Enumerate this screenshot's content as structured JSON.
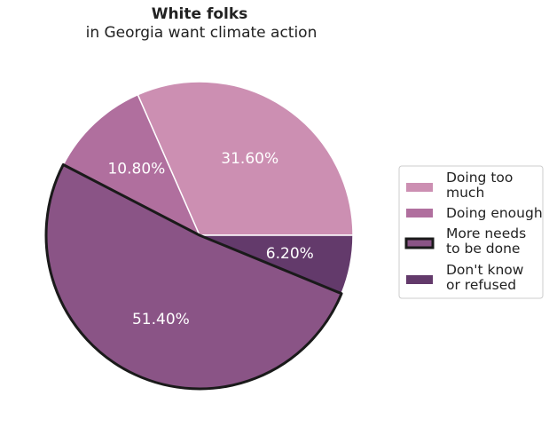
{
  "chart_data": {
    "type": "pie",
    "title": "White folks",
    "subtitle": "in Georgia want climate action",
    "start_angle_deg": 0,
    "direction": "counterclockwise",
    "highlighted_slice": 2,
    "legend_position": "right",
    "slices": [
      {
        "label_lines": [
          "Doing too",
          "much"
        ],
        "value": 31.6,
        "pct_label": "31.60%",
        "color": "#cc8fb2"
      },
      {
        "label_lines": [
          "Doing enough"
        ],
        "value": 10.8,
        "pct_label": "10.80%",
        "color": "#b06f9e"
      },
      {
        "label_lines": [
          "More needs",
          "to be done"
        ],
        "value": 51.4,
        "pct_label": "51.40%",
        "color": "#8a5486"
      },
      {
        "label_lines": [
          "Don't know",
          "or refused"
        ],
        "value": 6.2,
        "pct_label": "6.20%",
        "color": "#633a6b"
      }
    ]
  }
}
